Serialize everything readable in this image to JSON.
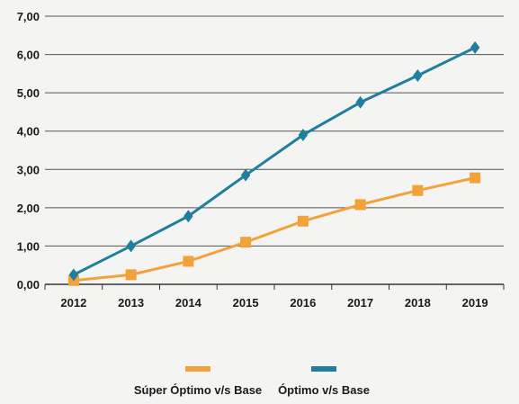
{
  "chart_data": {
    "type": "line",
    "title": "",
    "xlabel": "",
    "ylabel": "",
    "x": [
      "2012",
      "2013",
      "2014",
      "2015",
      "2016",
      "2017",
      "2018",
      "2019"
    ],
    "ylim": [
      0,
      7
    ],
    "yticks": [
      "0,00",
      "1,00",
      "2,00",
      "3,00",
      "4,00",
      "5,00",
      "6,00",
      "7,00"
    ],
    "grid": true,
    "legend_position": "bottom",
    "series": [
      {
        "name": "Súper Óptimo v/s Base",
        "color": "#f2a23a",
        "marker": "square",
        "values": [
          0.1,
          0.25,
          0.6,
          1.1,
          1.65,
          2.08,
          2.45,
          2.78
        ]
      },
      {
        "name": "Óptimo v/s Base",
        "color": "#1f7f9c",
        "marker": "diamond",
        "values": [
          0.25,
          1.0,
          1.78,
          2.85,
          3.9,
          4.75,
          5.45,
          6.18
        ]
      }
    ]
  }
}
